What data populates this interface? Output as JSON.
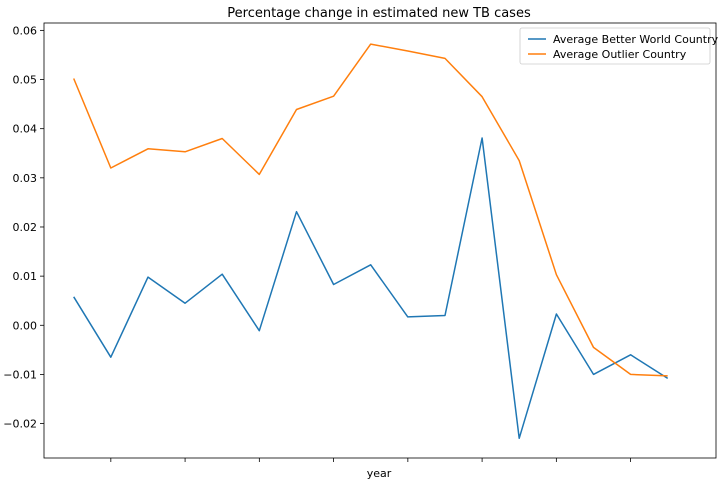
{
  "chart_data": {
    "type": "line",
    "title": "Percentage change in estimated new TB cases",
    "xlabel": "year",
    "ylabel": "",
    "x": [
      0,
      1,
      2,
      3,
      4,
      5,
      6,
      7,
      8,
      9,
      10,
      11,
      12,
      13,
      14,
      15,
      16
    ],
    "xlim": [
      -0.8,
      17.3
    ],
    "x_ticks": [
      1,
      3,
      5,
      7,
      9,
      11,
      13,
      15
    ],
    "ylim": [
      -0.027,
      0.0615
    ],
    "y_ticks": [
      -0.02,
      -0.01,
      0.0,
      0.01,
      0.02,
      0.03,
      0.04,
      0.05,
      0.06
    ],
    "y_tick_labels": [
      "−0.02",
      "−0.01",
      "0.00",
      "0.01",
      "0.02",
      "0.03",
      "0.04",
      "0.05",
      "0.06"
    ],
    "grid": false,
    "legend_position": "top-right",
    "series": [
      {
        "name": "Average Better World Country",
        "color": "#1f77b4",
        "values": [
          0.0058,
          -0.0065,
          0.0098,
          0.0045,
          0.0104,
          -0.0011,
          0.0231,
          0.0083,
          0.0123,
          0.0017,
          0.002,
          0.0381,
          -0.023,
          0.0023,
          -0.01,
          -0.006,
          -0.0108
        ]
      },
      {
        "name": "Average Outlier Country",
        "color": "#ff7f0e",
        "values": [
          0.0502,
          0.032,
          0.0359,
          0.0353,
          0.038,
          0.0307,
          0.0439,
          0.0466,
          0.0572,
          0.0558,
          0.0543,
          0.0465,
          0.0335,
          0.0103,
          -0.0045,
          -0.01,
          -0.0103
        ]
      }
    ]
  }
}
